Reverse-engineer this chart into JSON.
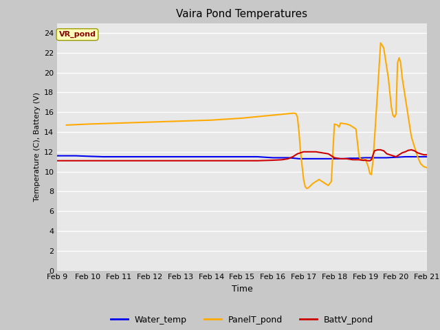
{
  "title": "Vaira Pond Temperatures",
  "xlabel": "Time",
  "ylabel": "Temperature (C), Battery (V)",
  "annotation_text": "VR_pond",
  "annotation_bg": "#ffffbb",
  "annotation_border": "#999900",
  "annotation_text_color": "#880000",
  "ylim": [
    0,
    25
  ],
  "yticks": [
    0,
    2,
    4,
    6,
    8,
    10,
    12,
    14,
    16,
    18,
    20,
    22,
    24
  ],
  "fig_bg": "#c8c8c8",
  "plot_bg": "#e8e8e8",
  "grid_color": "#d8d8d8",
  "water_temp_color": "#0000ee",
  "panel_temp_color": "#ffaa00",
  "batt_color": "#cc0000",
  "water_temp": {
    "x_days": [
      9.0,
      9.3,
      9.6,
      10.0,
      10.5,
      11.0,
      11.5,
      12.0,
      12.5,
      13.0,
      13.5,
      14.0,
      14.5,
      15.0,
      15.5,
      16.0,
      16.3,
      16.5,
      16.7,
      16.85,
      17.0,
      17.15,
      17.3,
      17.5,
      17.7,
      18.0,
      18.3,
      18.5,
      18.7,
      19.0,
      19.2,
      19.5,
      19.7,
      20.0,
      20.3,
      20.5,
      20.7,
      21.0
    ],
    "y": [
      11.6,
      11.6,
      11.6,
      11.55,
      11.5,
      11.5,
      11.5,
      11.5,
      11.5,
      11.5,
      11.5,
      11.5,
      11.5,
      11.5,
      11.5,
      11.4,
      11.4,
      11.4,
      11.35,
      11.3,
      11.3,
      11.3,
      11.3,
      11.3,
      11.3,
      11.3,
      11.3,
      11.35,
      11.35,
      11.4,
      11.4,
      11.4,
      11.4,
      11.45,
      11.5,
      11.5,
      11.5,
      11.5
    ]
  },
  "panel_temp": {
    "x_days": [
      9.3,
      10.0,
      11.0,
      12.0,
      13.0,
      14.0,
      15.0,
      16.0,
      16.5,
      16.65,
      16.7,
      16.75,
      16.8,
      16.85,
      16.9,
      17.0,
      17.05,
      17.1,
      17.15,
      17.2,
      17.3,
      17.4,
      17.5,
      17.6,
      17.7,
      17.8,
      17.9,
      18.0,
      18.05,
      18.1,
      18.15,
      18.2,
      18.3,
      18.4,
      18.5,
      18.6,
      18.7,
      18.8,
      18.85,
      18.9,
      18.95,
      19.0,
      19.05,
      19.1,
      19.15,
      19.2,
      19.25,
      19.3,
      19.4,
      19.5,
      19.6,
      19.65,
      19.7,
      19.75,
      19.8,
      19.85,
      19.9,
      19.95,
      20.0,
      20.05,
      20.1,
      20.15,
      20.2,
      20.3,
      20.4,
      20.5,
      20.6,
      20.7,
      20.8,
      20.9,
      21.0
    ],
    "y": [
      14.7,
      14.8,
      14.9,
      15.0,
      15.1,
      15.2,
      15.4,
      15.7,
      15.85,
      15.9,
      15.9,
      15.85,
      15.5,
      14.0,
      12.0,
      9.2,
      8.5,
      8.3,
      8.35,
      8.5,
      8.8,
      9.0,
      9.2,
      9.0,
      8.8,
      8.6,
      9.0,
      14.8,
      14.75,
      14.7,
      14.5,
      14.9,
      14.85,
      14.8,
      14.7,
      14.5,
      14.3,
      11.5,
      11.3,
      11.2,
      11.1,
      11.3,
      10.9,
      10.5,
      9.8,
      9.7,
      11.0,
      13.2,
      18.0,
      23.0,
      22.5,
      21.5,
      20.5,
      19.5,
      18.0,
      16.5,
      15.7,
      15.5,
      15.8,
      21.0,
      21.5,
      21.0,
      19.5,
      17.5,
      15.5,
      13.5,
      12.5,
      11.5,
      10.8,
      10.5,
      10.4
    ]
  },
  "batt_pond": {
    "x_days": [
      9.0,
      9.5,
      10.0,
      10.5,
      11.0,
      11.5,
      12.0,
      12.5,
      13.0,
      13.5,
      14.0,
      14.5,
      15.0,
      15.5,
      16.0,
      16.3,
      16.5,
      16.65,
      16.7,
      16.8,
      16.9,
      17.0,
      17.1,
      17.2,
      17.4,
      17.6,
      17.8,
      18.0,
      18.2,
      18.4,
      18.6,
      18.8,
      18.9,
      19.0,
      19.1,
      19.15,
      19.2,
      19.3,
      19.4,
      19.5,
      19.6,
      19.7,
      19.8,
      20.0,
      20.1,
      20.2,
      20.3,
      20.4,
      20.5,
      20.6,
      20.7,
      20.8,
      20.9,
      21.0
    ],
    "y": [
      11.1,
      11.1,
      11.1,
      11.1,
      11.1,
      11.1,
      11.1,
      11.1,
      11.1,
      11.1,
      11.1,
      11.1,
      11.1,
      11.1,
      11.15,
      11.2,
      11.3,
      11.5,
      11.6,
      11.8,
      11.9,
      12.0,
      12.0,
      12.0,
      12.0,
      11.9,
      11.8,
      11.4,
      11.3,
      11.3,
      11.2,
      11.2,
      11.15,
      11.15,
      11.1,
      11.1,
      11.2,
      12.1,
      12.2,
      12.2,
      12.1,
      11.8,
      11.7,
      11.5,
      11.7,
      11.9,
      12.0,
      12.15,
      12.2,
      12.1,
      11.9,
      11.8,
      11.7,
      11.7
    ]
  },
  "x_tick_days": [
    9,
    10,
    11,
    12,
    13,
    14,
    15,
    16,
    17,
    18,
    19,
    20,
    21
  ],
  "x_tick_labels": [
    "Feb 9",
    "Feb 10",
    "Feb 11",
    "Feb 12",
    "Feb 13",
    "Feb 14",
    "Feb 15",
    "Feb 16",
    "Feb 17",
    "Feb 18",
    "Feb 19",
    "Feb 20",
    "Feb 21"
  ],
  "legend_labels": [
    "Water_temp",
    "PanelT_pond",
    "BattV_pond"
  ]
}
